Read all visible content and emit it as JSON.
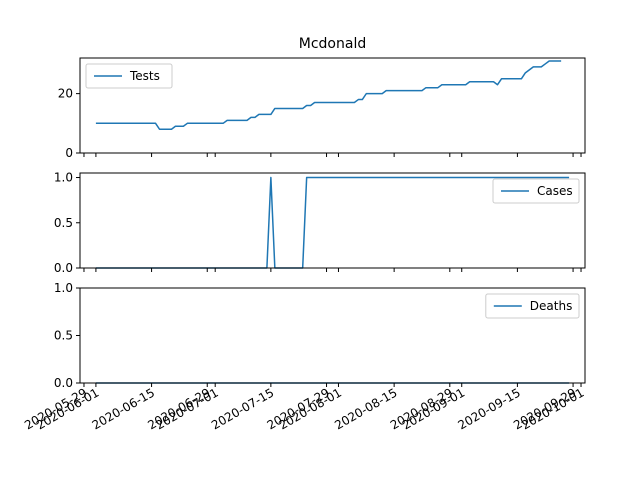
{
  "title": "Mcdonald",
  "line_color": "#1f77b4",
  "x_tick_labels": [
    "2020-05-29",
    "2020-06-01",
    "2020-06-15",
    "2020-06-29",
    "2020-07-01",
    "2020-07-15",
    "2020-07-29",
    "2020-08-01",
    "2020-08-15",
    "2020-08-29",
    "2020-09-01",
    "2020-09-15",
    "2020-09-29",
    "2020-10-01"
  ],
  "chart_data": [
    {
      "type": "line",
      "title": "Mcdonald",
      "legend": "top-left",
      "grid": false,
      "x_range": [
        "2020-05-28",
        "2020-10-02"
      ],
      "ylim": [
        0,
        32
      ],
      "yticks": [
        0,
        20
      ],
      "series": [
        {
          "name": "Tests",
          "points": [
            [
              "2020-06-01",
              10
            ],
            [
              "2020-06-16",
              10
            ],
            [
              "2020-06-17",
              8
            ],
            [
              "2020-06-20",
              8
            ],
            [
              "2020-06-21",
              9
            ],
            [
              "2020-06-23",
              9
            ],
            [
              "2020-06-24",
              10
            ],
            [
              "2020-07-03",
              10
            ],
            [
              "2020-07-04",
              11
            ],
            [
              "2020-07-09",
              11
            ],
            [
              "2020-07-10",
              12
            ],
            [
              "2020-07-11",
              12
            ],
            [
              "2020-07-12",
              13
            ],
            [
              "2020-07-15",
              13
            ],
            [
              "2020-07-16",
              15
            ],
            [
              "2020-07-23",
              15
            ],
            [
              "2020-07-24",
              16
            ],
            [
              "2020-07-25",
              16
            ],
            [
              "2020-07-26",
              17
            ],
            [
              "2020-08-05",
              17
            ],
            [
              "2020-08-06",
              18
            ],
            [
              "2020-08-07",
              18
            ],
            [
              "2020-08-08",
              20
            ],
            [
              "2020-08-12",
              20
            ],
            [
              "2020-08-13",
              21
            ],
            [
              "2020-08-22",
              21
            ],
            [
              "2020-08-23",
              22
            ],
            [
              "2020-08-26",
              22
            ],
            [
              "2020-08-27",
              23
            ],
            [
              "2020-09-02",
              23
            ],
            [
              "2020-09-03",
              24
            ],
            [
              "2020-09-09",
              24
            ],
            [
              "2020-09-10",
              23
            ],
            [
              "2020-09-11",
              25
            ],
            [
              "2020-09-16",
              25
            ],
            [
              "2020-09-17",
              27
            ],
            [
              "2020-09-18",
              28
            ],
            [
              "2020-09-19",
              29
            ],
            [
              "2020-09-21",
              29
            ],
            [
              "2020-09-22",
              30
            ],
            [
              "2020-09-23",
              31
            ],
            [
              "2020-09-26",
              31
            ]
          ]
        }
      ]
    },
    {
      "type": "line",
      "legend": "top-right",
      "grid": false,
      "x_range": [
        "2020-05-28",
        "2020-10-02"
      ],
      "ylim": [
        0,
        1.05
      ],
      "yticks": [
        0.0,
        0.5,
        1.0
      ],
      "series": [
        {
          "name": "Cases",
          "points": [
            [
              "2020-06-01",
              0
            ],
            [
              "2020-07-14",
              0
            ],
            [
              "2020-07-15",
              1
            ],
            [
              "2020-07-16",
              0
            ],
            [
              "2020-07-23",
              0
            ],
            [
              "2020-07-24",
              1
            ],
            [
              "2020-09-28",
              1
            ]
          ]
        }
      ]
    },
    {
      "type": "line",
      "legend": "top-right",
      "grid": false,
      "x_range": [
        "2020-05-28",
        "2020-10-02"
      ],
      "ylim": [
        0,
        1.0
      ],
      "yticks": [
        0.0,
        0.5,
        1.0
      ],
      "series": [
        {
          "name": "Deaths",
          "points": [
            [
              "2020-06-01",
              0
            ],
            [
              "2020-09-28",
              0
            ]
          ]
        }
      ]
    }
  ]
}
